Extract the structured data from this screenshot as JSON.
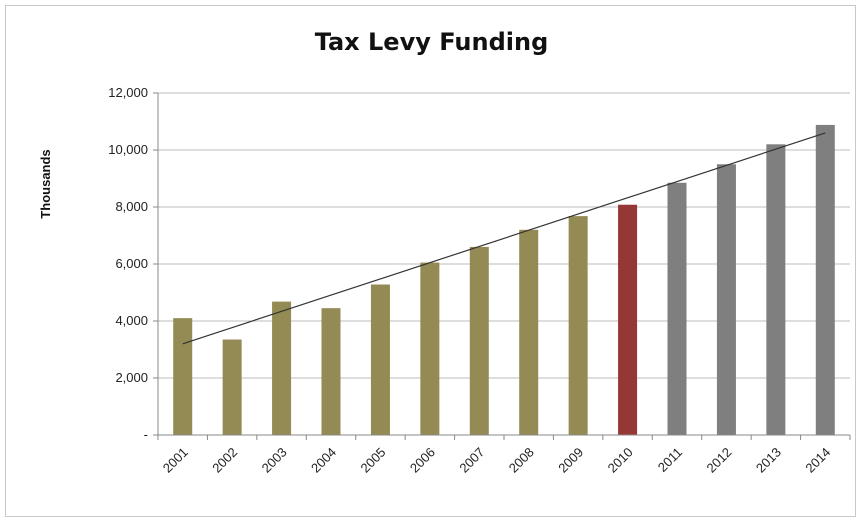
{
  "chart_data": {
    "type": "bar",
    "title": "Tax Levy Funding",
    "ylabel": "Thousands",
    "xlabel": "",
    "ylim": [
      0,
      12000
    ],
    "yticks": [
      0,
      2000,
      4000,
      6000,
      8000,
      10000,
      12000
    ],
    "ytick_labels": [
      "-",
      "2,000",
      "4,000",
      "6,000",
      "8,000",
      "10,000",
      "12,000"
    ],
    "categories": [
      "2001",
      "2002",
      "2003",
      "2004",
      "2005",
      "2006",
      "2007",
      "2008",
      "2009",
      "2010",
      "2011",
      "2012",
      "2013",
      "2014"
    ],
    "values": [
      4100,
      3350,
      4680,
      4450,
      5280,
      6050,
      6600,
      7200,
      7680,
      8080,
      8850,
      9500,
      10200,
      10880
    ],
    "bar_colors": [
      "#948a54",
      "#948a54",
      "#948a54",
      "#948a54",
      "#948a54",
      "#948a54",
      "#948a54",
      "#948a54",
      "#948a54",
      "#953735",
      "#7f7f7f",
      "#7f7f7f",
      "#7f7f7f",
      "#7f7f7f"
    ],
    "trendline": {
      "type": "linear",
      "start": 3200,
      "end": 10600
    },
    "grid": true,
    "legend": "none"
  }
}
